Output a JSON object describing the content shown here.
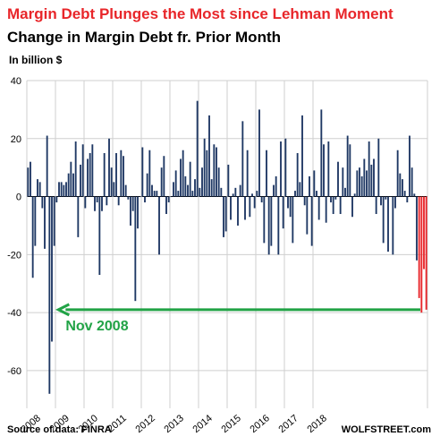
{
  "header": {
    "title": "Margin Debt Plunges the Most since Lehman Moment",
    "subtitle": "Change in Margin Debt fr. Prior Month",
    "unit": "In billion $"
  },
  "footer": {
    "source": "Source of data: FINRA",
    "brand": "WOLFSTREET.com"
  },
  "colors": {
    "bar": "#1f3864",
    "highlight": "#e8262a",
    "arrow": "#21a346",
    "grid": "#cfcfcf"
  },
  "chart_data": {
    "type": "bar",
    "title": "Change in Margin Debt fr. Prior Month",
    "ylabel": "In billion $",
    "ylim": [
      -73,
      40
    ],
    "yticks": [
      40,
      20,
      0,
      -20,
      -40,
      -60
    ],
    "xlabels": [
      "2008",
      "2009",
      "2010",
      "2011",
      "2012",
      "2013",
      "2014",
      "2015",
      "2016",
      "2017",
      "2018"
    ],
    "grid": true,
    "months_start": "2008-01",
    "values": [
      10,
      12,
      -28,
      -17,
      6,
      5,
      -4,
      -18,
      21,
      -68,
      -50,
      -17,
      -2,
      5,
      5,
      4,
      5,
      8,
      12,
      8,
      19,
      -14,
      11,
      18,
      -4,
      13,
      15,
      18,
      -5,
      -2,
      -27,
      -5,
      15,
      -3,
      20,
      10,
      5,
      15,
      -3,
      16,
      14,
      4,
      -1,
      -10,
      -5,
      -36,
      -11,
      0,
      17,
      -2,
      8,
      16,
      4,
      2,
      2,
      -20,
      10,
      14,
      -6,
      -2,
      0,
      5,
      9,
      2,
      13,
      16,
      7,
      4,
      12,
      2,
      6,
      33,
      3,
      10,
      20,
      16,
      28,
      6,
      18,
      17,
      10,
      3,
      -14,
      -12,
      11,
      -8,
      1,
      3,
      -10,
      4,
      26,
      -8,
      16,
      -7,
      1,
      -4,
      2,
      30,
      -2,
      -16,
      16,
      -20,
      -17,
      4,
      7,
      -20,
      19,
      -11,
      20,
      -4,
      -7,
      -16,
      2,
      15,
      5,
      28,
      -3,
      -13,
      7,
      -17,
      9,
      2,
      -8,
      30,
      18,
      -9,
      19,
      -2,
      -6,
      -1,
      12,
      -6,
      10,
      3,
      21,
      18,
      -7,
      1,
      9,
      10,
      7,
      13,
      9,
      19,
      11,
      13,
      -6,
      20,
      -3,
      -16,
      -1,
      -19,
      0,
      -20,
      -4,
      16,
      8,
      6,
      2,
      -2,
      21,
      10,
      1,
      -22,
      -35,
      -40,
      -25,
      -39
    ],
    "annotations": [
      {
        "text": "Nov 2008",
        "value": -39
      }
    ]
  }
}
